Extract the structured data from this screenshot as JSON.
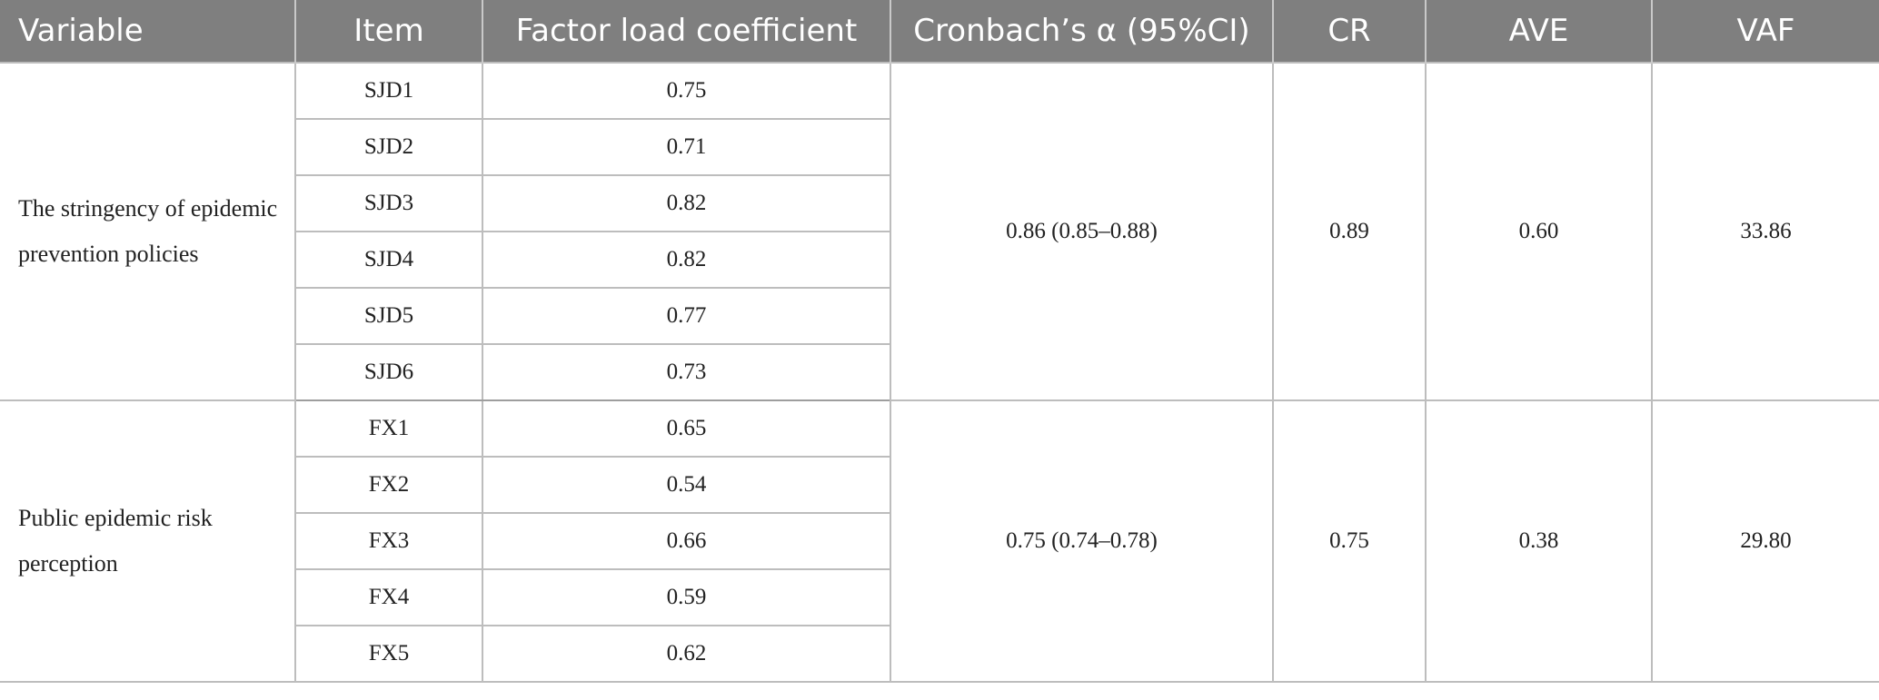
{
  "table": {
    "headers": [
      "Variable",
      "Item",
      "Factor load coefficient",
      "Cronbach’s α (95%CI)",
      "CR",
      "AVE",
      "VAF"
    ],
    "groups": [
      {
        "variable": "The stringency of epidemic prevention policies",
        "cronbach": "0.86 (0.85–0.88)",
        "cr": "0.89",
        "ave": "0.60",
        "vaf": "33.86",
        "items": [
          {
            "item": "SJD1",
            "loading": "0.75"
          },
          {
            "item": "SJD2",
            "loading": "0.71"
          },
          {
            "item": "SJD3",
            "loading": "0.82"
          },
          {
            "item": "SJD4",
            "loading": "0.82"
          },
          {
            "item": "SJD5",
            "loading": "0.77"
          },
          {
            "item": "SJD6",
            "loading": "0.73"
          }
        ]
      },
      {
        "variable": "Public epidemic risk perception",
        "cronbach": "0.75 (0.74–0.78)",
        "cr": "0.75",
        "ave": "0.38",
        "vaf": "29.80",
        "items": [
          {
            "item": "FX1",
            "loading": "0.65"
          },
          {
            "item": "FX2",
            "loading": "0.54"
          },
          {
            "item": "FX3",
            "loading": "0.66"
          },
          {
            "item": "FX4",
            "loading": "0.59"
          },
          {
            "item": "FX5",
            "loading": "0.62"
          }
        ]
      }
    ]
  }
}
